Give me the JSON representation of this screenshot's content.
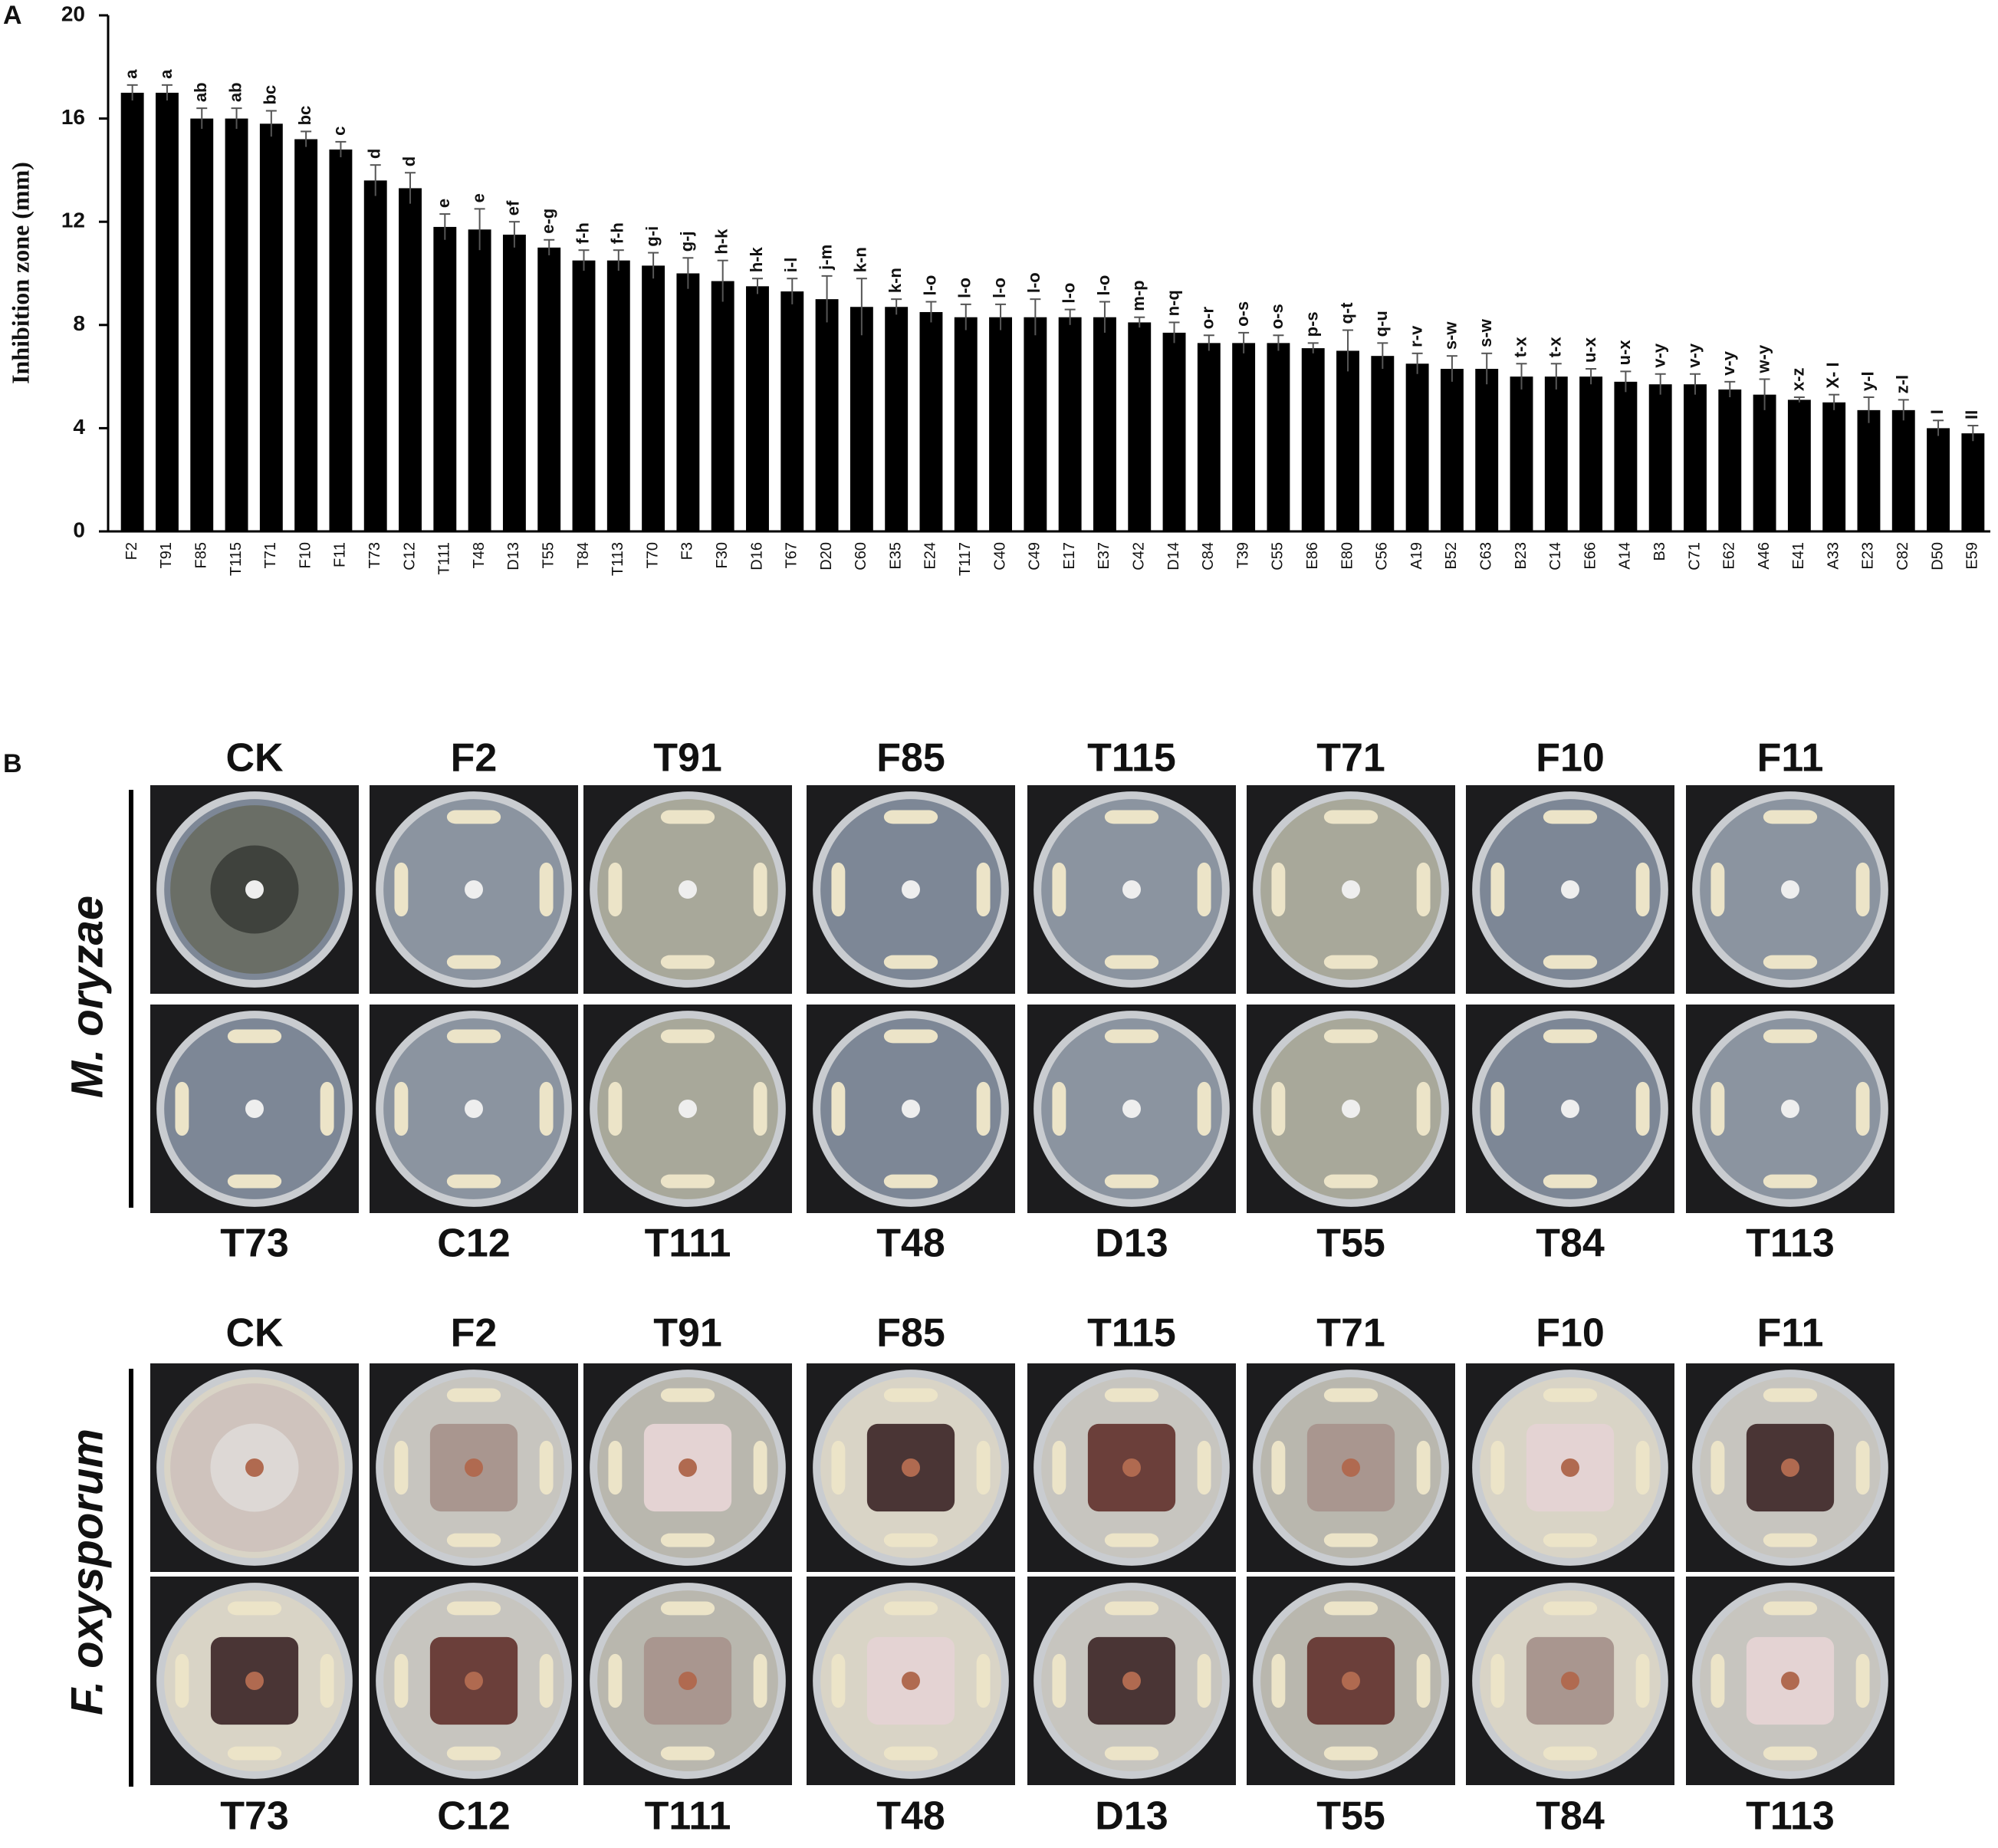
{
  "chart_data": {
    "type": "bar",
    "panel_label": "A",
    "y_label": "Inhibition zone (mm)",
    "categories": [
      "F2",
      "T91",
      "F85",
      "T115",
      "T71",
      "F10",
      "F11",
      "T73",
      "C12",
      "T111",
      "T48",
      "D13",
      "T55",
      "T84",
      "T113",
      "T70",
      "F3",
      "F30",
      "D16",
      "T67",
      "D20",
      "C60",
      "E35",
      "E24",
      "T117",
      "C40",
      "C49",
      "E17",
      "E37",
      "C42",
      "D14",
      "C84",
      "T39",
      "C55",
      "E86",
      "E80",
      "C56",
      "A19",
      "B52",
      "C63",
      "B23",
      "C14",
      "E66",
      "A14",
      "B3",
      "C71",
      "E62",
      "A46",
      "E41",
      "A33",
      "E23",
      "C82",
      "D50",
      "E59"
    ],
    "values": [
      17,
      17,
      16,
      16,
      15.8,
      15.2,
      14.8,
      13.6,
      13.3,
      11.8,
      11.7,
      11.5,
      11,
      10.5,
      10.5,
      10.3,
      10,
      9.7,
      9.5,
      9.3,
      9,
      8.7,
      8.7,
      8.5,
      8.3,
      8.3,
      8.3,
      8.3,
      8.3,
      8.1,
      7.7,
      7.3,
      7.3,
      7.3,
      7.1,
      7,
      6.8,
      6.5,
      6.3,
      6.3,
      6,
      6,
      6,
      5.8,
      5.7,
      5.7,
      5.5,
      5.3,
      5.1,
      5,
      4.7,
      4.7,
      4,
      3.8
    ],
    "errors": [
      0.3,
      0.3,
      0.4,
      0.4,
      0.5,
      0.3,
      0.3,
      0.6,
      0.6,
      0.5,
      0.8,
      0.5,
      0.3,
      0.4,
      0.4,
      0.5,
      0.6,
      0.8,
      0.3,
      0.5,
      0.9,
      1.1,
      0.3,
      0.4,
      0.5,
      0.5,
      0.7,
      0.3,
      0.6,
      0.2,
      0.4,
      0.3,
      0.4,
      0.3,
      0.2,
      0.8,
      0.5,
      0.4,
      0.5,
      0.6,
      0.5,
      0.5,
      0.3,
      0.4,
      0.4,
      0.4,
      0.3,
      0.6,
      0.1,
      0.3,
      0.5,
      0.4,
      0.3,
      0.3
    ],
    "letters": [
      "a",
      "a",
      "ab",
      "ab",
      "bc",
      "bc",
      "c",
      "d",
      "d",
      "e",
      "e",
      "ef",
      "e-g",
      "f-h",
      "f-h",
      "g-i",
      "g-j",
      "h-k",
      "h-k",
      "i-l",
      "j-m",
      "k-n",
      "k-n",
      "l-o",
      "l-o",
      "l-o",
      "l-o",
      "l-o",
      "l-o",
      "m-p",
      "n-q",
      "o-r",
      "o-s",
      "o-s",
      "p-s",
      "q-t",
      "q-u",
      "r-v",
      "s-w",
      "s-w",
      "t-x",
      "t-x",
      "u-x",
      "u-x",
      "v-y",
      "v-y",
      "v-y",
      "w-y",
      "x-z",
      "X- I",
      "y-I",
      "z-I",
      "I",
      "II"
    ],
    "color": "#000000",
    "ylim": [
      0,
      20
    ],
    "yticks": [
      0,
      4,
      8,
      12,
      16,
      20
    ]
  },
  "panel_b": {
    "label": "B",
    "groups": [
      {
        "name": "M. oryzae",
        "top_labels": [
          "CK",
          "F2",
          "T91",
          "F85",
          "T115",
          "T71",
          "F10",
          "F11"
        ],
        "bottom_labels": [
          "T73",
          "C12",
          "T111",
          "T48",
          "D13",
          "T55",
          "T84",
          "T113"
        ]
      },
      {
        "name": "F. oxysporum",
        "top_labels": [
          "CK",
          "F2",
          "T91",
          "F85",
          "T115",
          "T71",
          "F10",
          "F11"
        ],
        "bottom_labels": [
          "T73",
          "C12",
          "T111",
          "T48",
          "D13",
          "T55",
          "T84",
          "T113"
        ]
      }
    ]
  }
}
